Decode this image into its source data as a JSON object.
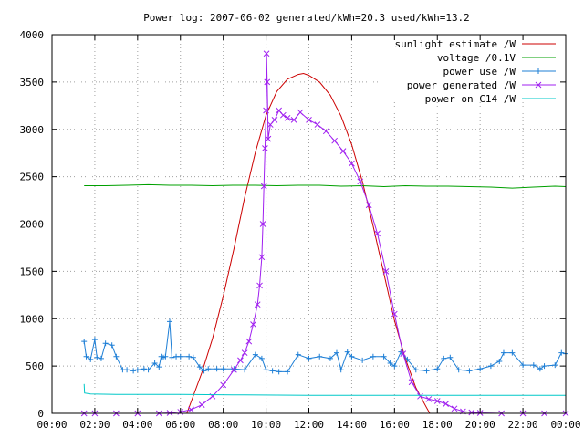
{
  "chart_data": {
    "type": "line",
    "title": "Power log: 2007-06-02 generated/kWh=20.3 used/kWh=13.2",
    "xlabel": "",
    "ylabel": "",
    "xlim": [
      0,
      24
    ],
    "ylim": [
      0,
      4000
    ],
    "x_ticks": [
      "00:00",
      "02:00",
      "04:00",
      "06:00",
      "08:00",
      "10:00",
      "12:00",
      "14:00",
      "16:00",
      "18:00",
      "20:00",
      "22:00",
      "00:00"
    ],
    "y_ticks": [
      "0",
      "500",
      "1000",
      "1500",
      "2000",
      "2500",
      "3000",
      "3500",
      "4000"
    ],
    "grid": true,
    "legend_position": "top-right",
    "series": [
      {
        "name": "sunlight estimate /W",
        "color": "#cc0000",
        "style": "line",
        "x": [
          6.3,
          7.0,
          7.5,
          8.0,
          8.5,
          9.0,
          9.5,
          10.0,
          10.5,
          11.0,
          11.5,
          11.75,
          12.0,
          12.5,
          13.0,
          13.5,
          14.0,
          14.5,
          15.0,
          15.5,
          16.0,
          16.5,
          17.0,
          17.5,
          17.65
        ],
        "values": [
          0,
          430,
          790,
          1240,
          1740,
          2280,
          2760,
          3150,
          3400,
          3530,
          3580,
          3590,
          3570,
          3500,
          3360,
          3140,
          2840,
          2450,
          1980,
          1480,
          980,
          580,
          270,
          60,
          0
        ]
      },
      {
        "name": "voltage /0.1V",
        "color": "#00a000",
        "style": "line",
        "x": [
          1.5,
          2.5,
          3.5,
          4.5,
          5.5,
          6.5,
          7.5,
          8.5,
          9.5,
          10.5,
          11.5,
          12.5,
          13.5,
          14.5,
          15.5,
          16.5,
          17.5,
          18.5,
          19.5,
          20.5,
          21.5,
          22.5,
          23.5,
          24.0
        ],
        "values": [
          2405,
          2405,
          2410,
          2415,
          2410,
          2410,
          2405,
          2410,
          2410,
          2405,
          2410,
          2410,
          2400,
          2405,
          2395,
          2405,
          2400,
          2400,
          2395,
          2390,
          2380,
          2390,
          2400,
          2395
        ]
      },
      {
        "name": "power use /W",
        "color": "#1e7fd6",
        "style": "linespoints-plus",
        "x": [
          1.5,
          1.6,
          1.8,
          2.0,
          2.1,
          2.3,
          2.5,
          2.8,
          3.0,
          3.3,
          3.5,
          3.8,
          4.0,
          4.3,
          4.5,
          4.8,
          5.0,
          5.1,
          5.2,
          5.3,
          5.5,
          5.6,
          5.8,
          6.0,
          6.4,
          6.6,
          6.9,
          7.1,
          7.3,
          7.7,
          8.0,
          8.5,
          9.0,
          9.5,
          9.8,
          10.0,
          10.3,
          10.6,
          11.0,
          11.5,
          12.0,
          12.5,
          13.0,
          13.3,
          13.5,
          13.8,
          14.0,
          14.5,
          15.0,
          15.5,
          15.8,
          16.0,
          16.3,
          16.6,
          17.0,
          17.5,
          18.0,
          18.3,
          18.6,
          19.0,
          19.5,
          20.0,
          20.5,
          20.9,
          21.1,
          21.5,
          22.0,
          22.5,
          22.8,
          23.0,
          23.5,
          23.8,
          24.0
        ],
        "values": [
          760,
          600,
          570,
          780,
          590,
          580,
          740,
          720,
          600,
          460,
          460,
          450,
          460,
          470,
          460,
          530,
          490,
          600,
          590,
          600,
          970,
          590,
          600,
          600,
          600,
          590,
          490,
          450,
          470,
          470,
          470,
          470,
          460,
          620,
          580,
          460,
          450,
          440,
          440,
          620,
          580,
          600,
          580,
          640,
          460,
          650,
          600,
          560,
          600,
          600,
          530,
          500,
          650,
          570,
          460,
          450,
          470,
          580,
          590,
          460,
          450,
          470,
          500,
          550,
          640,
          640,
          510,
          510,
          470,
          500,
          510,
          640,
          630
        ]
      },
      {
        "name": "power generated /W",
        "color": "#a020f0",
        "style": "linespoints-x",
        "x": [
          1.5,
          2.0,
          3.0,
          4.0,
          5.0,
          5.5,
          6.0,
          6.5,
          7.0,
          7.5,
          8.0,
          8.5,
          8.8,
          9.0,
          9.2,
          9.4,
          9.6,
          9.7,
          9.8,
          9.85,
          9.9,
          9.95,
          10.0,
          10.02,
          10.05,
          10.1,
          10.2,
          10.4,
          10.6,
          10.8,
          11.0,
          11.3,
          11.6,
          12.0,
          12.4,
          12.8,
          13.2,
          13.6,
          14.0,
          14.4,
          14.8,
          15.2,
          15.6,
          16.0,
          16.4,
          16.8,
          17.2,
          17.6,
          18.0,
          18.4,
          18.8,
          19.2,
          19.6,
          20.0,
          21.0,
          22.0,
          23.0,
          24.0
        ],
        "values": [
          0,
          0,
          0,
          0,
          0,
          5,
          15,
          40,
          90,
          180,
          300,
          460,
          560,
          640,
          760,
          940,
          1150,
          1350,
          1650,
          2000,
          2400,
          2800,
          3200,
          3800,
          3500,
          2900,
          3050,
          3100,
          3200,
          3150,
          3120,
          3100,
          3180,
          3100,
          3050,
          2980,
          2880,
          2770,
          2640,
          2450,
          2200,
          1900,
          1500,
          1050,
          630,
          330,
          180,
          150,
          130,
          100,
          50,
          20,
          10,
          5,
          0,
          0,
          0,
          0
        ]
      },
      {
        "name": "power on C14 /W",
        "color": "#00c8c8",
        "style": "line",
        "x": [
          1.5,
          1.52,
          1.8,
          3,
          6,
          9,
          12,
          15,
          18,
          21,
          24
        ],
        "values": [
          310,
          215,
          205,
          200,
          200,
          195,
          190,
          190,
          190,
          190,
          190
        ]
      }
    ]
  }
}
